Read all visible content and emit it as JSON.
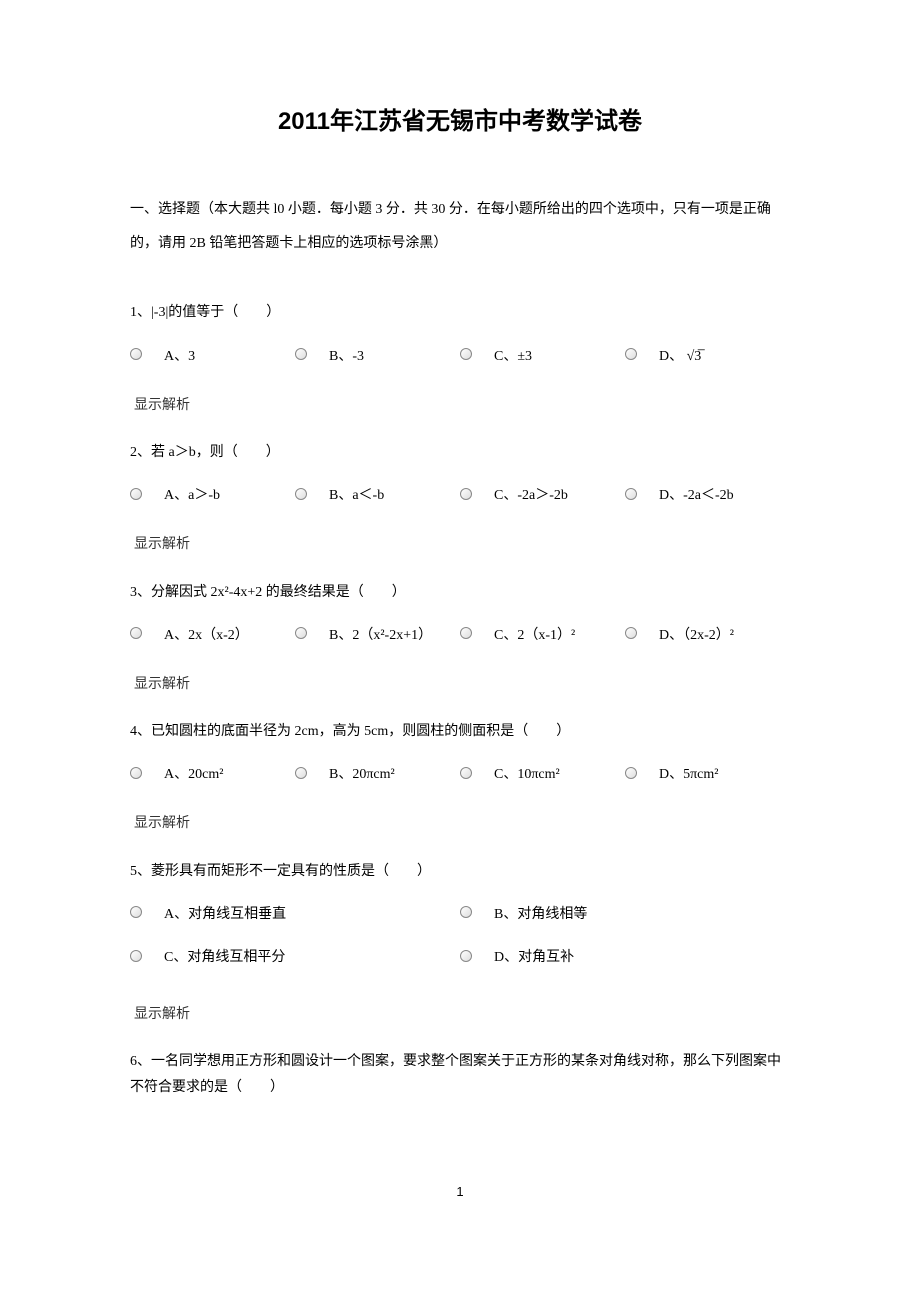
{
  "title": "2011年江苏省无锡市中考数学试卷",
  "section_header": "一、选择题（本大题共 l0 小题．每小题 3 分．共 30 分．在每小题所给出的四个选项中，只有一项是正确的，请用 2B 铅笔把答题卡上相应的选项标号涂黑）",
  "show_analysis": "显示解析",
  "page_number": "1",
  "questions": [
    {
      "text": "1、|-3|的值等于（　　）",
      "layout": "quarter",
      "options": [
        "A、3",
        "B、-3",
        "C、±3",
        "D、 √3̅"
      ]
    },
    {
      "text": "2、若 a＞b，则（　　）",
      "layout": "quarter",
      "options": [
        "A、a＞-b",
        "B、a＜-b",
        "C、-2a＞-2b",
        "D、-2a＜-2b"
      ]
    },
    {
      "text": "3、分解因式 2x²-4x+2 的最终结果是（　　）",
      "layout": "quarter",
      "options": [
        "A、2x（x-2）",
        "B、2（x²-2x+1）",
        "C、2（x-1）²",
        "D、（2x-2）²"
      ]
    },
    {
      "text": "4、已知圆柱的底面半径为 2cm，高为 5cm，则圆柱的侧面积是（　　）",
      "layout": "quarter",
      "options": [
        "A、20cm²",
        "B、20πcm²",
        "C、10πcm²",
        "D、5πcm²"
      ]
    },
    {
      "text": "5、菱形具有而矩形不一定具有的性质是（　　）",
      "layout": "half",
      "options": [
        "A、对角线互相垂直",
        "B、对角线相等",
        "C、对角线互相平分",
        "D、对角互补"
      ]
    },
    {
      "text": "6、一名同学想用正方形和圆设计一个图案，要求整个图案关于正方形的某条对角线对称，那么下列图案中不符合要求的是（　　）",
      "layout": "none",
      "options": []
    }
  ]
}
